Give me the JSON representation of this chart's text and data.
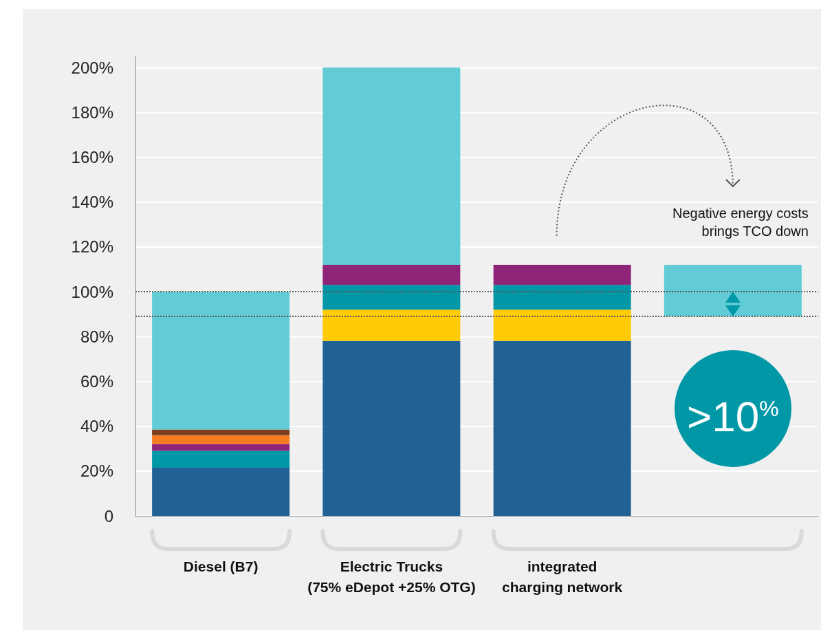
{
  "chart_data": {
    "type": "bar",
    "stacked": true,
    "categories": [
      "Diesel (B7)",
      "Electric Trucks\n(75% eDepot +25% OTG)",
      "integrated\ncharging network",
      null
    ],
    "series": [
      {
        "color": "#216296",
        "values": [
          21.5,
          78,
          78,
          null
        ]
      },
      {
        "color": "#ffcb05",
        "values": [
          null,
          14,
          14,
          null
        ]
      },
      {
        "color": "#0097a7",
        "values": [
          7.5,
          11,
          11,
          null
        ]
      },
      {
        "color": "#8e2579",
        "values": [
          3,
          9,
          9,
          null
        ]
      },
      {
        "color": "#f47b20",
        "values": [
          4,
          null,
          null,
          null
        ]
      },
      {
        "color": "#7b3f1e",
        "values": [
          2.5,
          null,
          null,
          null
        ]
      },
      {
        "color": "#62ccd6",
        "values": [
          61.5,
          88,
          null,
          null
        ]
      },
      {
        "color": "#62ccd6",
        "values": [
          null,
          null,
          null,
          23
        ],
        "base": [
          null,
          null,
          null,
          89
        ]
      }
    ],
    "ylim": [
      0,
      205
    ],
    "yticks": [
      {
        "value": 0,
        "label": "0"
      },
      {
        "value": 20,
        "label": "20%"
      },
      {
        "value": 40,
        "label": "40%"
      },
      {
        "value": 60,
        "label": "60%"
      },
      {
        "value": 80,
        "label": "80%"
      },
      {
        "value": 100,
        "label": "100%"
      },
      {
        "value": 120,
        "label": "120%"
      },
      {
        "value": 140,
        "label": "140%"
      },
      {
        "value": 160,
        "label": "160%"
      },
      {
        "value": 180,
        "label": "180%"
      },
      {
        "value": 200,
        "label": "200%"
      }
    ],
    "grid": "y",
    "ref_lines": [
      {
        "axis": "y",
        "value": 100,
        "line_style": "dotted",
        "color": "#555555"
      },
      {
        "axis": "y",
        "value": 89,
        "line_style": "dotted",
        "color": "#555555"
      }
    ],
    "annotations": [
      "Negative energy costs\nbrings TCO down",
      ">10$^{%}$"
    ]
  }
}
